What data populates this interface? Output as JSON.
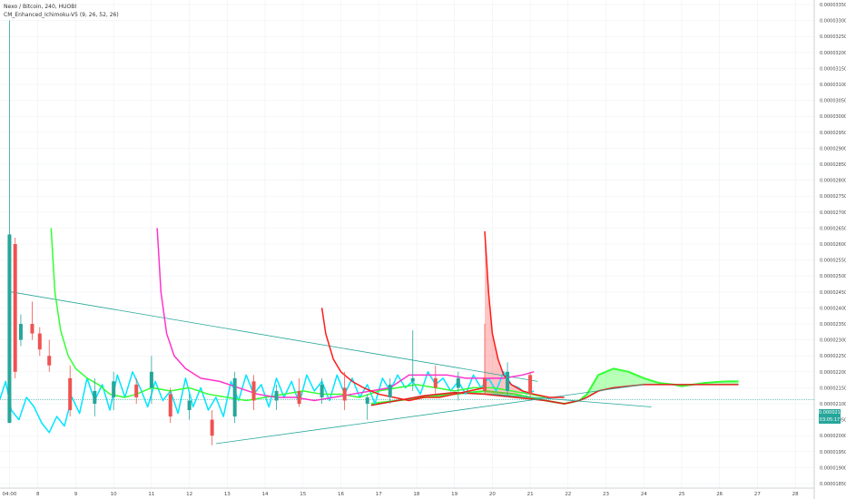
{
  "legend": {
    "symbol": "Nexo / Bitcoin, 240, HUOBI",
    "indicator": "CM_Enhanced_Ichimoku-V5 (9, 26, 52, 26)"
  },
  "price_label": {
    "price": "0.00002113",
    "countdown": "03:05:17"
  },
  "colors": {
    "up": "#26a69a",
    "down": "#ef5350",
    "cyan_line": "#00e5ff",
    "green_line": "#33ff33",
    "magenta_line": "#ff33cc",
    "red_line": "#ff1a1a",
    "trendline": "#26a69a"
  },
  "chart_data": {
    "type": "candlestick",
    "y_axis": {
      "min": 1.85e-05,
      "max": 3.35e-05,
      "ticks": [
        "0.00003350",
        "0.00003300",
        "0.00003250",
        "0.00003200",
        "0.00003150",
        "0.00003100",
        "0.00003050",
        "0.00003000",
        "0.00002950",
        "0.00002900",
        "0.00002850",
        "0.00002800",
        "0.00002750",
        "0.00002700",
        "0.00002650",
        "0.00002600",
        "0.00002550",
        "0.00002500",
        "0.00002450",
        "0.00002400",
        "0.00002350",
        "0.00002300",
        "0.00002250",
        "0.00002200",
        "0.00002150",
        "0.00002100",
        "0.00002050",
        "0.00002000",
        "0.00001950",
        "0.00001900",
        "0.00001850"
      ]
    },
    "x_axis": {
      "min": 7.0,
      "max": 28.5,
      "ticks": [
        {
          "label": "04:00",
          "x": 7.25
        },
        {
          "label": "8",
          "x": 8
        },
        {
          "label": "9",
          "x": 9
        },
        {
          "label": "10",
          "x": 10
        },
        {
          "label": "11",
          "x": 11
        },
        {
          "label": "12",
          "x": 12
        },
        {
          "label": "13",
          "x": 13
        },
        {
          "label": "14",
          "x": 14
        },
        {
          "label": "15",
          "x": 15
        },
        {
          "label": "16",
          "x": 16
        },
        {
          "label": "17",
          "x": 17
        },
        {
          "label": "18",
          "x": 18
        },
        {
          "label": "19",
          "x": 19
        },
        {
          "label": "20",
          "x": 20
        },
        {
          "label": "21",
          "x": 21
        },
        {
          "label": "22",
          "x": 22
        },
        {
          "label": "23",
          "x": 23
        },
        {
          "label": "24",
          "x": 24
        },
        {
          "label": "25",
          "x": 25
        },
        {
          "label": "26",
          "x": 26
        },
        {
          "label": "27",
          "x": 27
        },
        {
          "label": "28",
          "x": 28
        }
      ]
    },
    "candles": [
      {
        "x": 7.25,
        "o": 2.04e-05,
        "h": 3.3e-05,
        "l": 2.04e-05,
        "c": 2.63e-05
      },
      {
        "x": 7.4,
        "o": 2.6e-05,
        "h": 2.62e-05,
        "l": 2.18e-05,
        "c": 2.2e-05
      },
      {
        "x": 7.55,
        "o": 2.3e-05,
        "h": 2.38e-05,
        "l": 2.28e-05,
        "c": 2.35e-05
      },
      {
        "x": 7.85,
        "o": 2.35e-05,
        "h": 2.42e-05,
        "l": 2.3e-05,
        "c": 2.32e-05
      },
      {
        "x": 8.05,
        "o": 2.32e-05,
        "h": 2.34e-05,
        "l": 2.25e-05,
        "c": 2.27e-05
      },
      {
        "x": 8.3,
        "o": 2.25e-05,
        "h": 2.3e-05,
        "l": 2.2e-05,
        "c": 2.22e-05
      },
      {
        "x": 8.85,
        "o": 2.18e-05,
        "h": 2.22e-05,
        "l": 2.06e-05,
        "c": 2.08e-05
      },
      {
        "x": 9.5,
        "o": 2.1e-05,
        "h": 2.18e-05,
        "l": 2.06e-05,
        "c": 2.14e-05
      },
      {
        "x": 10.0,
        "o": 2.12e-05,
        "h": 2.2e-05,
        "l": 2.08e-05,
        "c": 2.17e-05
      },
      {
        "x": 10.6,
        "o": 2.16e-05,
        "h": 2.18e-05,
        "l": 2.1e-05,
        "c": 2.12e-05
      },
      {
        "x": 11.0,
        "o": 2.15e-05,
        "h": 2.25e-05,
        "l": 2.1e-05,
        "c": 2.2e-05
      },
      {
        "x": 11.5,
        "o": 2.13e-05,
        "h": 2.15e-05,
        "l": 2.04e-05,
        "c": 2.06e-05
      },
      {
        "x": 12.0,
        "o": 2.08e-05,
        "h": 2.13e-05,
        "l": 2.05e-05,
        "c": 2.11e-05
      },
      {
        "x": 12.6,
        "o": 2.05e-05,
        "h": 2.08e-05,
        "l": 1.97e-05,
        "c": 2e-05
      },
      {
        "x": 13.2,
        "o": 2.06e-05,
        "h": 2.2e-05,
        "l": 2.04e-05,
        "c": 2.18e-05
      },
      {
        "x": 13.7,
        "o": 2.17e-05,
        "h": 2.19e-05,
        "l": 2.08e-05,
        "c": 2.11e-05
      },
      {
        "x": 14.3,
        "o": 2.11e-05,
        "h": 2.16e-05,
        "l": 2.08e-05,
        "c": 2.14e-05
      },
      {
        "x": 14.9,
        "o": 2.14e-05,
        "h": 2.18e-05,
        "l": 2.09e-05,
        "c": 2.1e-05
      },
      {
        "x": 15.5,
        "o": 2.12e-05,
        "h": 2.18e-05,
        "l": 2.1e-05,
        "c": 2.16e-05
      },
      {
        "x": 16.1,
        "o": 2.15e-05,
        "h": 2.2e-05,
        "l": 2.08e-05,
        "c": 2.11e-05
      },
      {
        "x": 16.7,
        "o": 2.1e-05,
        "h": 2.13e-05,
        "l": 2.05e-05,
        "c": 2.12e-05
      },
      {
        "x": 17.3,
        "o": 2.12e-05,
        "h": 2.18e-05,
        "l": 2.1e-05,
        "c": 2.16e-05
      },
      {
        "x": 17.9,
        "o": 2.17e-05,
        "h": 2.33e-05,
        "l": 2.14e-05,
        "c": 2.18e-05
      },
      {
        "x": 18.5,
        "o": 2.18e-05,
        "h": 2.22e-05,
        "l": 2.13e-05,
        "c": 2.15e-05
      },
      {
        "x": 19.1,
        "o": 2.15e-05,
        "h": 2.2e-05,
        "l": 2.11e-05,
        "c": 2.18e-05
      },
      {
        "x": 19.8,
        "o": 2.18e-05,
        "h": 2.35e-05,
        "l": 2.13e-05,
        "c": 2.14e-05
      },
      {
        "x": 20.4,
        "o": 2.14e-05,
        "h": 2.23e-05,
        "l": 2.12e-05,
        "c": 2.2e-05
      },
      {
        "x": 21.0,
        "o": 2.19e-05,
        "h": 2.2e-05,
        "l": 2.12e-05,
        "c": 2.13e-05
      }
    ],
    "annotation_lines": [
      {
        "x1": 7.3,
        "y1": 2.45e-05,
        "x2": 21.2,
        "y2": 2.17e-05
      },
      {
        "x1": 12.7,
        "y1": 1.975e-05,
        "x2": 24.0,
        "y2": 2.16e-05
      },
      {
        "x1": 20.0,
        "y1": 2.13e-05,
        "x2": 24.2,
        "y2": 2.09e-05
      }
    ],
    "series": [
      {
        "color_key": "cyan_line",
        "x": [
          7.0,
          7.15,
          7.3,
          7.5,
          7.7,
          7.9,
          8.1,
          8.3,
          8.5,
          8.7,
          8.9,
          9.1,
          9.3,
          9.5,
          9.7,
          9.9,
          10.1,
          10.3,
          10.5,
          10.7,
          10.9,
          11.1,
          11.3,
          11.5,
          11.7,
          11.9,
          12.1,
          12.3,
          12.5,
          12.7,
          12.9,
          13.1,
          13.3,
          13.5,
          13.7,
          13.9,
          14.1,
          14.3,
          14.5,
          14.7,
          14.9,
          15.1,
          15.3,
          15.5,
          15.7,
          15.9,
          16.1,
          16.3,
          16.5,
          16.7,
          16.9,
          17.1,
          17.3,
          17.5,
          17.7,
          17.9,
          18.1,
          18.3,
          18.5,
          18.7,
          18.9,
          19.1,
          19.3,
          19.5,
          19.7,
          19.9,
          20.1,
          20.3,
          20.5,
          20.7,
          20.9,
          21.1
        ],
        "y": [
          2.115e-05,
          2.17e-05,
          2.08e-05,
          2.05e-05,
          2.12e-05,
          2.09e-05,
          2.04e-05,
          2.01e-05,
          2.06e-05,
          2.03e-05,
          2.12e-05,
          2.07e-05,
          2.18e-05,
          2.11e-05,
          2.16e-05,
          2.08e-05,
          2.19e-05,
          2.12e-05,
          2.2e-05,
          2.15e-05,
          2.09e-05,
          2.17e-05,
          2.11e-05,
          2.14e-05,
          2.07e-05,
          2.18e-05,
          2.09e-05,
          2.15e-05,
          2.08e-05,
          2.12e-05,
          2.06e-05,
          2.17e-05,
          2.11e-05,
          2.19e-05,
          2.13e-05,
          2.16e-05,
          2.09e-05,
          2.18e-05,
          2.12e-05,
          2.17e-05,
          2.1e-05,
          2.19e-05,
          2.14e-05,
          2.17e-05,
          2.11e-05,
          2.19e-05,
          2.13e-05,
          2.18e-05,
          2.12e-05,
          2.16e-05,
          2.1e-05,
          2.18e-05,
          2.14e-05,
          2.19e-05,
          2.15e-05,
          2.17e-05,
          2.13e-05,
          2.2e-05,
          2.16e-05,
          2.18e-05,
          2.14e-05,
          2.17e-05,
          2.13e-05,
          2.19e-05,
          2.15e-05,
          2.18e-05,
          2.14e-05,
          2.2e-05,
          2.16e-05,
          2.15e-05,
          2.13e-05,
          2.14e-05
        ]
      },
      {
        "color_key": "green_line",
        "x": [
          8.35,
          8.45,
          8.6,
          8.8,
          9.0,
          9.3,
          9.6,
          9.9,
          10.3,
          10.6,
          11.0,
          11.5,
          12.0,
          12.5,
          13.0,
          13.5,
          14.0,
          14.5,
          15.0,
          15.5,
          16.0,
          16.5,
          17.0,
          17.5,
          18.0,
          18.5,
          19.0,
          19.5,
          20.0,
          20.5,
          21.0,
          21.4
        ],
        "y": [
          2.65e-05,
          2.45e-05,
          2.33e-05,
          2.25e-05,
          2.21e-05,
          2.18e-05,
          2.16e-05,
          2.13e-05,
          2.12e-05,
          2.13e-05,
          2.15e-05,
          2.14e-05,
          2.15e-05,
          2.13e-05,
          2.12e-05,
          2.11e-05,
          2.12e-05,
          2.13e-05,
          2.14e-05,
          2.13e-05,
          2.13e-05,
          2.12e-05,
          2.14e-05,
          2.15e-05,
          2.16e-05,
          2.15e-05,
          2.14e-05,
          2.15e-05,
          2.15e-05,
          2.14e-05,
          2.13e-05,
          2.12e-05
        ]
      },
      {
        "color_key": "magenta_line",
        "x": [
          11.15,
          11.25,
          11.4,
          11.6,
          11.9,
          12.3,
          12.8,
          13.3,
          13.8,
          14.3,
          14.8,
          15.3,
          15.8,
          16.3,
          16.8,
          17.3,
          17.8,
          18.3,
          18.8,
          19.3,
          19.8,
          20.3,
          20.8,
          21.1
        ],
        "y": [
          2.65e-05,
          2.45e-05,
          2.32e-05,
          2.25e-05,
          2.21e-05,
          2.18e-05,
          2.17e-05,
          2.15e-05,
          2.13e-05,
          2.12e-05,
          2.12e-05,
          2.11e-05,
          2.12e-05,
          2.13e-05,
          2.14e-05,
          2.15e-05,
          2.19e-05,
          2.19e-05,
          2.19e-05,
          2.18e-05,
          2.18e-05,
          2.18e-05,
          2.19e-05,
          2.2e-05
        ]
      },
      {
        "color_key": "red_line",
        "x": [
          15.5,
          15.6,
          15.8,
          16.0,
          16.3,
          16.6,
          17.0,
          17.4,
          17.8,
          18.2,
          18.6,
          19.0,
          19.4,
          19.8
        ],
        "y": [
          2.4e-05,
          2.32e-05,
          2.24e-05,
          2.2e-05,
          2.17e-05,
          2.15e-05,
          2.13e-05,
          2.12e-05,
          2.11e-05,
          2.12e-05,
          2.12e-05,
          2.13e-05,
          2.14e-05,
          2.15e-05
        ]
      },
      {
        "color_key": "red_line",
        "x": [
          19.8,
          19.9,
          20.0,
          20.15,
          20.3,
          20.5,
          20.8,
          21.1,
          21.5,
          21.9
        ],
        "y": [
          2.64e-05,
          2.45e-05,
          2.32e-05,
          2.24e-05,
          2.19e-05,
          2.16e-05,
          2.14e-05,
          2.13e-05,
          2.12e-05,
          2.12e-05
        ]
      }
    ],
    "cloud": {
      "x": [
        16.8,
        17.5,
        18.2,
        19.0,
        19.8,
        20.6,
        21.4,
        21.9,
        22.3,
        22.5,
        22.8,
        23.2,
        23.6,
        24.0,
        24.4,
        24.8,
        25.0,
        25.3,
        25.6,
        25.9,
        26.2,
        26.5
      ],
      "span_a": [
        2.1e-05,
        2.11e-05,
        2.12e-05,
        2.13e-05,
        2.14e-05,
        2.13e-05,
        2.11e-05,
        2.1e-05,
        2.11e-05,
        2.13e-05,
        2.19e-05,
        2.21e-05,
        2.2e-05,
        2.18e-05,
        2.165e-05,
        2.16e-05,
        2.155e-05,
        2.16e-05,
        2.165e-05,
        2.168e-05,
        2.17e-05,
        2.17e-05
      ],
      "span_b": [
        2.095e-05,
        2.11e-05,
        2.125e-05,
        2.135e-05,
        2.13e-05,
        2.12e-05,
        2.11e-05,
        2.1e-05,
        2.11e-05,
        2.12e-05,
        2.14e-05,
        2.15e-05,
        2.155e-05,
        2.16e-05,
        2.16e-05,
        2.16e-05,
        2.16e-05,
        2.16e-05,
        2.16e-05,
        2.16e-05,
        2.16e-05,
        2.16e-05
      ]
    },
    "red_spike_area": {
      "x": [
        19.8,
        19.9,
        20.0,
        20.15,
        20.3,
        20.5,
        20.8
      ],
      "top": [
        2.64e-05,
        2.45e-05,
        2.32e-05,
        2.24e-05,
        2.19e-05,
        2.16e-05,
        2.14e-05
      ],
      "base": 2.13e-05
    },
    "current_price": 2.113e-05
  }
}
